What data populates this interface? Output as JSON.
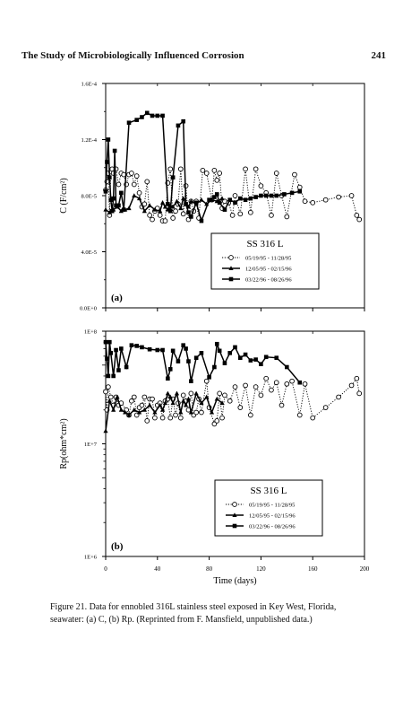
{
  "page": {
    "running_head": "The Study of Microbiologically Influenced Corrosion",
    "page_number": "241"
  },
  "caption": {
    "lines": [
      "Figure 21.   Data for ennobled 316L stainless steel exposed in Key West, Florida,",
      "seawater: (a) C, (b) Rp. (Reprinted from F. Mansfield, unpublished data.)"
    ]
  },
  "chart_data": [
    {
      "type": "line",
      "panel_label": "(a)",
      "legend_title": "SS 316 L",
      "ylabel": "C (F/cm²)",
      "xlim": [
        0,
        200
      ],
      "ylim": [
        0,
        0.00016
      ],
      "yticks": [
        {
          "value": 0.00016,
          "label": "1.6E-4"
        },
        {
          "value": 0.00012,
          "label": "1.2E-4"
        },
        {
          "value": 8e-05,
          "label": "8.0E-5"
        },
        {
          "value": 4e-05,
          "label": "4.0E-5"
        },
        {
          "value": 0,
          "label": "0.0E+0"
        }
      ],
      "series": [
        {
          "name": "05/19/95 - 11/28/95",
          "marker": "open-circle",
          "line": "dotted",
          "x": [
            0,
            1,
            2,
            3,
            4,
            5,
            6,
            8,
            10,
            12,
            14,
            16,
            18,
            20,
            22,
            24,
            26,
            28,
            30,
            32,
            34,
            36,
            38,
            40,
            42,
            44,
            46,
            48,
            50,
            52,
            54,
            56,
            58,
            60,
            62,
            64,
            66,
            68,
            70,
            72,
            75,
            78,
            82,
            84,
            86,
            88,
            90,
            92,
            95,
            98,
            100,
            104,
            108,
            112,
            116,
            120,
            124,
            128,
            132,
            136,
            140,
            146,
            150,
            154,
            160,
            170,
            180,
            190,
            194,
            196
          ],
          "y": [
            8.4e-05,
            9e-05,
            9.6e-05,
            6.6e-05,
            9.7e-05,
            9.9e-05,
            9.6e-05,
            9.9e-05,
            8.8e-05,
            9.6e-05,
            9.5e-05,
            8.8e-05,
            9.5e-05,
            9.6e-05,
            8.8e-05,
            9.4e-05,
            8.2e-05,
            7.2e-05,
            7.4e-05,
            9e-05,
            6.6e-05,
            6.3e-05,
            6.9e-05,
            7.1e-05,
            6.6e-05,
            6.2e-05,
            6.2e-05,
            8.9e-05,
            9.9e-05,
            6.4e-05,
            6.9e-05,
            7.4e-05,
            9.9e-05,
            6.7e-05,
            8.7e-05,
            6.3e-05,
            7.6e-05,
            6.9e-05,
            7.6e-05,
            6.4e-05,
            9.8e-05,
            9.6e-05,
            7.7e-05,
            9.8e-05,
            9.1e-05,
            9.6e-05,
            7.1e-05,
            7.6e-05,
            7.5e-05,
            6.6e-05,
            8e-05,
            6.7e-05,
            9.9e-05,
            6.8e-05,
            9.9e-05,
            8.7e-05,
            8.2e-05,
            6.6e-05,
            9.6e-05,
            8e-05,
            6.5e-05,
            9.5e-05,
            8.6e-05,
            7.6e-05,
            7.5e-05,
            7.7e-05,
            7.9e-05,
            8e-05,
            6.6e-05,
            6.3e-05
          ]
        },
        {
          "name": "12/05/95 - 02/15/96",
          "marker": "filled-triangle",
          "line": "solid",
          "x": [
            0,
            3,
            6,
            9,
            12,
            15,
            18,
            22,
            26,
            30,
            34,
            38,
            42,
            44,
            46,
            48,
            50,
            52,
            55,
            58,
            60,
            62,
            64,
            66,
            70,
            74,
            78,
            82,
            86,
            90
          ],
          "y": [
            7e-05,
            6.8e-05,
            7e-05,
            7.2e-05,
            6.9e-05,
            7e-05,
            7.1e-05,
            8e-05,
            7.8e-05,
            6.9e-05,
            7.3e-05,
            7e-05,
            6.9e-05,
            7.5e-05,
            7.2e-05,
            7e-05,
            7.3e-05,
            7.2e-05,
            7.6e-05,
            7.1e-05,
            7.8e-05,
            7.4e-05,
            7.2e-05,
            7.6e-05,
            7.4e-05,
            7.7e-05,
            7.4e-05,
            7.7e-05,
            7.6e-05,
            7.8e-05
          ]
        },
        {
          "name": "03/22/96 - 08/26/96",
          "marker": "filled-square",
          "line": "solid",
          "x": [
            0,
            1,
            2,
            3,
            4,
            5,
            6,
            7,
            8,
            10,
            12,
            14,
            18,
            24,
            28,
            32,
            36,
            40,
            44,
            48,
            50,
            52,
            56,
            60,
            62,
            64,
            66,
            70,
            74,
            80,
            84,
            86,
            88,
            92,
            96,
            100,
            104,
            108,
            112,
            116,
            120,
            124,
            128,
            132,
            138,
            144,
            150
          ],
          "y": [
            8.3e-05,
            0.000104,
            0.00012,
            9.3e-05,
            7.7e-05,
            6.9e-05,
            7.8e-05,
            0.000112,
            7.3e-05,
            7.3e-05,
            8.2e-05,
            7e-05,
            0.000132,
            0.000134,
            0.000136,
            0.000139,
            0.000137,
            0.000137,
            0.000137,
            7.4e-05,
            6.9e-05,
            9.3e-05,
            0.00013,
            0.000133,
            7.4e-05,
            6.8e-05,
            6.5e-05,
            7.5e-05,
            6.2e-05,
            7.7e-05,
            7.9e-05,
            8.1e-05,
            7.5e-05,
            7e-05,
            7.7e-05,
            7.5e-05,
            7.8e-05,
            7.7e-05,
            7.8e-05,
            7.9e-05,
            8e-05,
            8e-05,
            8e-05,
            8e-05,
            8.1e-05,
            8.2e-05,
            8.3e-05
          ]
        }
      ]
    },
    {
      "type": "line",
      "panel_label": "(b)",
      "legend_title": "SS 316 L",
      "ylabel": "Rp(ohm*cm²)",
      "xlabel": "Time (days)",
      "xlim": [
        0,
        200
      ],
      "xticks": [
        0,
        40,
        80,
        120,
        160,
        200
      ],
      "xtick_labels": [
        "0",
        "40",
        "80",
        "120",
        "160",
        "200"
      ],
      "yscale": "log",
      "ylim": [
        1000000.0,
        100000000.0
      ],
      "yticks": [
        {
          "value": 100000000.0,
          "label": "1E+8"
        },
        {
          "value": 10000000.0,
          "label": "1E+7"
        },
        {
          "value": 1000000.0,
          "label": "1E+6"
        }
      ],
      "series": [
        {
          "name": "05/19/95 - 11/28/95",
          "marker": "open-circle",
          "line": "dotted",
          "x": [
            0,
            1,
            2,
            4,
            6,
            8,
            10,
            12,
            16,
            18,
            20,
            22,
            24,
            26,
            28,
            30,
            32,
            34,
            36,
            38,
            40,
            42,
            44,
            46,
            48,
            50,
            52,
            54,
            56,
            58,
            60,
            62,
            64,
            66,
            68,
            70,
            72,
            74,
            78,
            80,
            84,
            86,
            88,
            90,
            92,
            96,
            100,
            104,
            108,
            112,
            116,
            120,
            124,
            128,
            132,
            136,
            140,
            144,
            150,
            154,
            160,
            170,
            180,
            190,
            194,
            196
          ],
          "y": [
            29000000.0,
            20000000.0,
            32000000.0,
            26000000.0,
            22000000.0,
            26000000.0,
            22000000.0,
            23000000.0,
            20000000.0,
            18000000.0,
            24000000.0,
            26000000.0,
            18000000.0,
            21000000.0,
            22000000.0,
            26000000.0,
            16000000.0,
            25000000.0,
            25000000.0,
            17000000.0,
            22000000.0,
            23000000.0,
            17000000.0,
            24000000.0,
            25000000.0,
            17000000.0,
            25000000.0,
            18000000.0,
            23000000.0,
            17000000.0,
            27000000.0,
            24000000.0,
            20000000.0,
            28000000.0,
            18000000.0,
            19000000.0,
            25000000.0,
            19000000.0,
            36000000.0,
            21000000.0,
            15000000.0,
            16000000.0,
            28000000.0,
            17000000.0,
            27000000.0,
            24000000.0,
            32000000.0,
            21000000.0,
            33000000.0,
            18000000.0,
            32000000.0,
            27000000.0,
            38000000.0,
            30000000.0,
            35000000.0,
            22000000.0,
            34000000.0,
            36000000.0,
            18000000.0,
            34000000.0,
            17000000.0,
            21000000.0,
            26000000.0,
            33000000.0,
            38000000.0,
            28000000.0
          ]
        },
        {
          "name": "12/05/95 - 02/15/96",
          "marker": "filled-triangle",
          "line": "solid",
          "x": [
            0,
            3,
            6,
            9,
            12,
            15,
            18,
            22,
            26,
            30,
            34,
            38,
            42,
            44,
            46,
            48,
            50,
            52,
            55,
            58,
            60,
            62,
            64,
            66,
            70,
            74,
            78,
            82,
            86,
            90
          ],
          "y": [
            13000000.0,
            24000000.0,
            20000000.0,
            26000000.0,
            20000000.0,
            19000000.0,
            18000000.0,
            20000000.0,
            19000000.0,
            20000000.0,
            22000000.0,
            19000000.0,
            22000000.0,
            20000000.0,
            23000000.0,
            28000000.0,
            26000000.0,
            23000000.0,
            28000000.0,
            19000000.0,
            24000000.0,
            22000000.0,
            25000000.0,
            19000000.0,
            28000000.0,
            23000000.0,
            26000000.0,
            19000000.0,
            25000000.0,
            23000000.0
          ]
        },
        {
          "name": "03/22/96 - 08/26/96",
          "marker": "filled-square",
          "line": "solid",
          "x": [
            0,
            1,
            2,
            3,
            4,
            6,
            8,
            10,
            12,
            16,
            20,
            24,
            28,
            34,
            40,
            44,
            48,
            50,
            52,
            56,
            60,
            62,
            64,
            66,
            70,
            74,
            80,
            84,
            86,
            88,
            92,
            96,
            100,
            104,
            108,
            112,
            116,
            120,
            124,
            132,
            140,
            150
          ],
          "y": [
            80000000.0,
            57000000.0,
            40000000.0,
            80000000.0,
            64000000.0,
            40000000.0,
            68000000.0,
            45000000.0,
            70000000.0,
            48000000.0,
            75000000.0,
            74000000.0,
            72000000.0,
            69000000.0,
            68000000.0,
            68000000.0,
            38000000.0,
            46000000.0,
            67000000.0,
            54000000.0,
            75000000.0,
            70000000.0,
            54000000.0,
            36000000.0,
            58000000.0,
            64000000.0,
            39000000.0,
            48000000.0,
            77000000.0,
            67000000.0,
            52000000.0,
            64000000.0,
            72000000.0,
            58000000.0,
            62000000.0,
            55000000.0,
            56000000.0,
            51000000.0,
            59000000.0,
            58000000.0,
            48000000.0,
            35000000.0
          ]
        }
      ]
    }
  ]
}
